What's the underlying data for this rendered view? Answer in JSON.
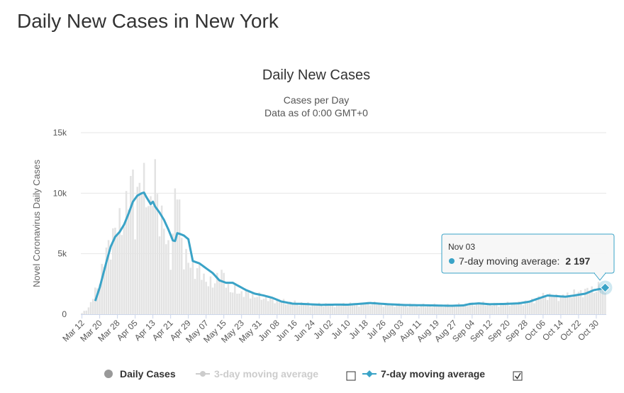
{
  "page": {
    "heading": "Daily New Cases in New York"
  },
  "chart_data": {
    "type": "bar",
    "title": "Daily New Cases",
    "subtitle_line1": "Cases per Day",
    "subtitle_line2": "Data as of 0:00 GMT+0",
    "ylabel": "Novel Coronavirus Daily Cases",
    "xlabel": "",
    "ylim": [
      0,
      15000
    ],
    "yticks": [
      0,
      5000,
      10000,
      15000
    ],
    "ytick_labels": [
      "0",
      "5k",
      "10k",
      "15k"
    ],
    "start_date": "2020-03-12",
    "end_date": "2020-11-03",
    "xtick_labels": [
      "Mar 12",
      "Mar 20",
      "Mar 28",
      "Apr 05",
      "Apr 13",
      "Apr 21",
      "Apr 29",
      "May 07",
      "May 15",
      "May 23",
      "May 31",
      "Jun 08",
      "Jun 16",
      "Jun 24",
      "Jul 02",
      "Jul 10",
      "Jul 18",
      "Jul 26",
      "Aug 03",
      "Aug 11",
      "Aug 19",
      "Aug 27",
      "Sep 04",
      "Sep 12",
      "Sep 20",
      "Sep 28",
      "Oct 06",
      "Oct 14",
      "Oct 22",
      "Oct 30"
    ],
    "grid": true,
    "daily_keypoints": [
      [
        "2020-03-12",
        90
      ],
      [
        "2020-03-15",
        550
      ],
      [
        "2020-03-18",
        1800
      ],
      [
        "2020-03-20",
        2950
      ],
      [
        "2020-03-23",
        5000
      ],
      [
        "2020-03-26",
        6600
      ],
      [
        "2020-03-29",
        7300
      ],
      [
        "2020-04-01",
        8700
      ],
      [
        "2020-04-03",
        10300
      ],
      [
        "2020-04-04",
        11400
      ],
      [
        "2020-04-05",
        8300
      ],
      [
        "2020-04-07",
        10400
      ],
      [
        "2020-04-09",
        10700
      ],
      [
        "2020-04-10",
        11000
      ],
      [
        "2020-04-12",
        8200
      ],
      [
        "2020-04-14",
        11600
      ],
      [
        "2020-04-16",
        8400
      ],
      [
        "2020-04-19",
        6100
      ],
      [
        "2020-04-21",
        4700
      ],
      [
        "2020-04-24",
        10700
      ],
      [
        "2020-04-27",
        4600
      ],
      [
        "2020-05-01",
        3900
      ],
      [
        "2020-05-05",
        3300
      ],
      [
        "2020-05-10",
        2300
      ],
      [
        "2020-05-13",
        3600
      ],
      [
        "2020-05-18",
        2000
      ],
      [
        "2020-05-25",
        1700
      ],
      [
        "2020-06-01",
        1400
      ],
      [
        "2020-06-08",
        1100
      ],
      [
        "2020-06-15",
        950
      ],
      [
        "2020-06-25",
        800
      ],
      [
        "2020-07-05",
        780
      ],
      [
        "2020-07-15",
        850
      ],
      [
        "2020-07-20",
        900
      ],
      [
        "2020-07-30",
        760
      ],
      [
        "2020-08-10",
        720
      ],
      [
        "2020-08-20",
        720
      ],
      [
        "2020-08-30",
        750
      ],
      [
        "2020-09-05",
        880
      ],
      [
        "2020-09-15",
        800
      ],
      [
        "2020-09-25",
        900
      ],
      [
        "2020-10-01",
        1100
      ],
      [
        "2020-10-06",
        1500
      ],
      [
        "2020-10-15",
        1450
      ],
      [
        "2020-10-22",
        1800
      ],
      [
        "2020-10-30",
        2100
      ],
      [
        "2020-11-03",
        2400
      ]
    ],
    "series": [
      {
        "name": "Daily Cases",
        "color": "#999999",
        "visible": true
      },
      {
        "name": "3-day moving average",
        "color": "#cccccc",
        "visible": false
      },
      {
        "name": "7-day moving average",
        "color": "#3aa3c7",
        "visible": true,
        "keypoints": [
          [
            "2020-03-18",
            1100
          ],
          [
            "2020-03-20",
            2200
          ],
          [
            "2020-03-23",
            4300
          ],
          [
            "2020-03-25",
            5600
          ],
          [
            "2020-03-27",
            6400
          ],
          [
            "2020-03-29",
            6800
          ],
          [
            "2020-03-31",
            7400
          ],
          [
            "2020-04-02",
            8300
          ],
          [
            "2020-04-04",
            9300
          ],
          [
            "2020-04-06",
            9800
          ],
          [
            "2020-04-08",
            10000
          ],
          [
            "2020-04-09",
            10050
          ],
          [
            "2020-04-10",
            9700
          ],
          [
            "2020-04-12",
            9100
          ],
          [
            "2020-04-13",
            9300
          ],
          [
            "2020-04-14",
            8900
          ],
          [
            "2020-04-16",
            8400
          ],
          [
            "2020-04-18",
            7800
          ],
          [
            "2020-04-20",
            7000
          ],
          [
            "2020-04-22",
            6100
          ],
          [
            "2020-04-23",
            6050
          ],
          [
            "2020-04-24",
            6700
          ],
          [
            "2020-04-25",
            6650
          ],
          [
            "2020-04-27",
            6500
          ],
          [
            "2020-04-29",
            6200
          ],
          [
            "2020-05-01",
            4400
          ],
          [
            "2020-05-04",
            4200
          ],
          [
            "2020-05-07",
            3800
          ],
          [
            "2020-05-10",
            3400
          ],
          [
            "2020-05-13",
            2800
          ],
          [
            "2020-05-16",
            2600
          ],
          [
            "2020-05-19",
            2600
          ],
          [
            "2020-05-22",
            2300
          ],
          [
            "2020-05-25",
            2000
          ],
          [
            "2020-05-29",
            1700
          ],
          [
            "2020-06-02",
            1550
          ],
          [
            "2020-06-06",
            1350
          ],
          [
            "2020-06-10",
            1050
          ],
          [
            "2020-06-15",
            880
          ],
          [
            "2020-06-20",
            850
          ],
          [
            "2020-06-28",
            780
          ],
          [
            "2020-07-05",
            800
          ],
          [
            "2020-07-10",
            790
          ],
          [
            "2020-07-15",
            860
          ],
          [
            "2020-07-20",
            930
          ],
          [
            "2020-07-28",
            830
          ],
          [
            "2020-08-05",
            760
          ],
          [
            "2020-08-15",
            740
          ],
          [
            "2020-08-25",
            700
          ],
          [
            "2020-08-31",
            730
          ],
          [
            "2020-09-03",
            850
          ],
          [
            "2020-09-07",
            900
          ],
          [
            "2020-09-12",
            830
          ],
          [
            "2020-09-18",
            850
          ],
          [
            "2020-09-25",
            900
          ],
          [
            "2020-09-30",
            1050
          ],
          [
            "2020-10-03",
            1250
          ],
          [
            "2020-10-08",
            1550
          ],
          [
            "2020-10-12",
            1500
          ],
          [
            "2020-10-16",
            1450
          ],
          [
            "2020-10-20",
            1550
          ],
          [
            "2020-10-25",
            1700
          ],
          [
            "2020-10-29",
            2000
          ],
          [
            "2020-11-01",
            2100
          ],
          [
            "2020-11-03",
            2197
          ]
        ]
      }
    ],
    "tooltip": {
      "date": "Nov 03",
      "label": "7-day moving average:",
      "value": "2 197"
    }
  }
}
